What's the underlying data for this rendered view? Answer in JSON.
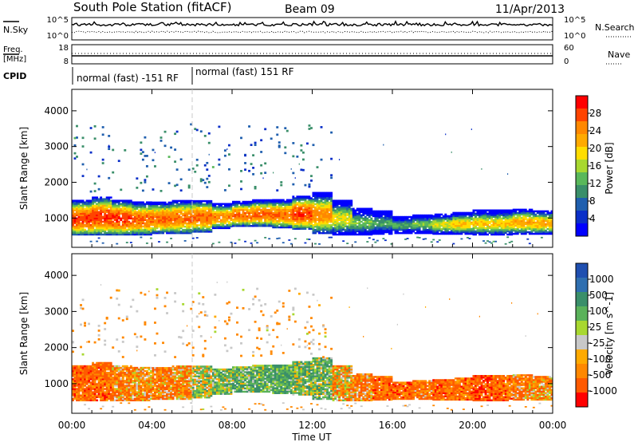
{
  "header": {
    "station": "South Pole Station (fitACF)",
    "beam": "Beam 09",
    "date": "11/Apr/2013"
  },
  "top_panels": {
    "nsky_label": "N.Sky",
    "nsearch_label": "N.Search",
    "nsky_ticks": [
      "10^5",
      "10^0"
    ],
    "nsearch_ticks": [
      "10^5",
      "10^0"
    ],
    "freq_label": "Freq.",
    "freq_unit": "[MHz]",
    "freq_ticks": [
      "18",
      "8"
    ],
    "nave_label": "Nave",
    "nave_ticks": [
      "60",
      "0"
    ],
    "cpid_label": "CPID",
    "cpid_segments": [
      {
        "label": "normal (fast) -151 RF",
        "start_hour": 0,
        "end_hour": 6.1
      },
      {
        "label": "normal (fast) 151 RF",
        "start_hour": 6.1,
        "end_hour": 24
      }
    ]
  },
  "colorbars": {
    "power": {
      "title": "Power [dB]",
      "ticks": [
        "28",
        "24",
        "20",
        "16",
        "12",
        "8",
        "4"
      ],
      "colors": [
        "#ff0000",
        "#ff4400",
        "#ff8800",
        "#ffaa00",
        "#ffdd00",
        "#a8d830",
        "#59b85a",
        "#3a8f6a",
        "#1f5fae",
        "#0a2fc8",
        "#0000ff"
      ]
    },
    "velocity": {
      "title": "Velocity [m s^-1]",
      "ticks": [
        "1000",
        "500",
        "100",
        "25",
        "-25",
        "-100",
        "-500",
        "-1000"
      ],
      "colors": [
        "#1f4fb0",
        "#2f6fb0",
        "#3a8f6a",
        "#5ab25a",
        "#a8d830",
        "#c8c8c8",
        "#ffaa00",
        "#ff8800",
        "#ff5a00",
        "#ff0000"
      ]
    }
  },
  "chart_data": [
    {
      "type": "heatmap",
      "name": "power",
      "ylabel": "Slant Range [km]",
      "yticks": [
        "4000",
        "3000",
        "2000",
        "1000"
      ],
      "ylim": [
        180,
        4600
      ],
      "xlim_hours": [
        0,
        24
      ],
      "band_lower_km": [
        520,
        520,
        520,
        520,
        560,
        560,
        600,
        700,
        760,
        760,
        720,
        680,
        560,
        520,
        520,
        540,
        560,
        560,
        540,
        540,
        520,
        520,
        540,
        540
      ],
      "band_upper_km": [
        1500,
        1600,
        1500,
        1450,
        1450,
        1500,
        1500,
        1400,
        1450,
        1500,
        1500,
        1600,
        1700,
        1500,
        1250,
        1200,
        1050,
        1100,
        1100,
        1150,
        1200,
        1200,
        1250,
        1200
      ],
      "peak_power_db": [
        30,
        30,
        30,
        28,
        28,
        28,
        28,
        26,
        28,
        28,
        28,
        30,
        26,
        20,
        16,
        14,
        14,
        16,
        20,
        22,
        22,
        22,
        24,
        24
      ]
    },
    {
      "type": "heatmap",
      "name": "velocity",
      "ylabel": "Slant Range [km]",
      "yticks": [
        "4000",
        "3000",
        "2000",
        "1000"
      ],
      "ylim": [
        180,
        4600
      ],
      "xlim_hours": [
        0,
        24
      ],
      "band_lower_km": [
        520,
        520,
        520,
        520,
        560,
        560,
        600,
        700,
        760,
        760,
        720,
        680,
        560,
        520,
        520,
        540,
        560,
        560,
        540,
        540,
        520,
        520,
        540,
        540
      ],
      "band_upper_km": [
        1500,
        1600,
        1500,
        1450,
        1450,
        1500,
        1500,
        1400,
        1450,
        1500,
        1500,
        1600,
        1700,
        1500,
        1250,
        1200,
        1050,
        1100,
        1100,
        1150,
        1200,
        1200,
        1250,
        1200
      ],
      "mean_velocity_ms": [
        -300,
        -300,
        -200,
        -150,
        -200,
        -150,
        50,
        150,
        200,
        200,
        250,
        150,
        150,
        -100,
        -200,
        -300,
        -300,
        -250,
        -300,
        -300,
        -400,
        -300,
        -200,
        -150
      ]
    }
  ],
  "xaxis": {
    "title": "Time UT",
    "ticks": [
      "00:00",
      "04:00",
      "08:00",
      "12:00",
      "16:00",
      "20:00",
      "00:00"
    ]
  }
}
